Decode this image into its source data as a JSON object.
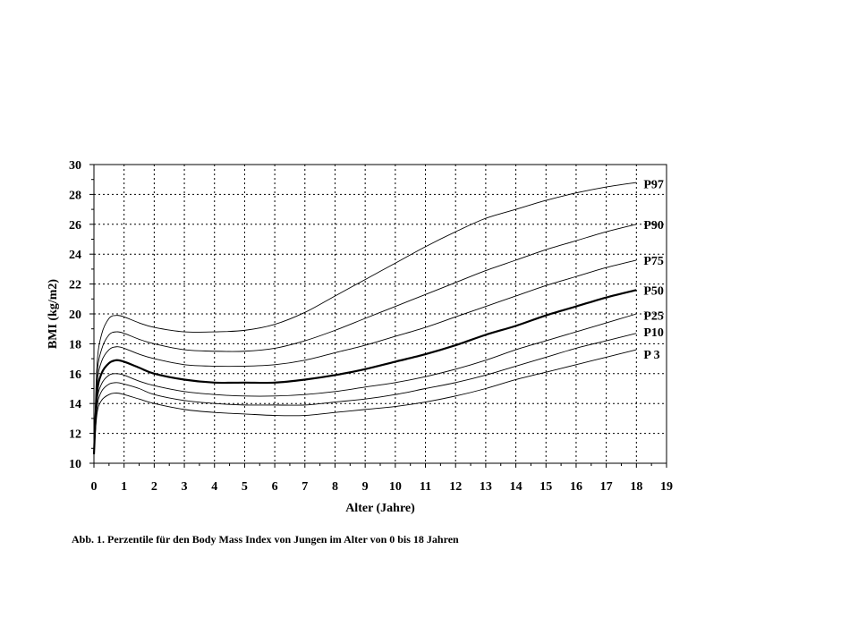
{
  "caption": "Abb. 1. Perzentile für den Body Mass Index von Jungen im Alter von 0 bis 18 Jahren",
  "chart_data": {
    "type": "line",
    "title": "",
    "xlabel": "Alter (Jahre)",
    "ylabel": "BMI (kg/m2)",
    "xlim": [
      0,
      19
    ],
    "ylim": [
      10,
      30
    ],
    "xticks": [
      0,
      1,
      2,
      3,
      4,
      5,
      6,
      7,
      8,
      9,
      10,
      11,
      12,
      13,
      14,
      15,
      16,
      17,
      18,
      19
    ],
    "yticks": [
      10,
      12,
      14,
      16,
      18,
      20,
      22,
      24,
      26,
      28,
      30
    ],
    "grid": true,
    "legend": "inline labels at right end of curves",
    "x": [
      0,
      0.1,
      0.25,
      0.5,
      0.75,
      1,
      1.5,
      2,
      3,
      4,
      5,
      6,
      7,
      8,
      9,
      10,
      11,
      12,
      13,
      14,
      15,
      16,
      17,
      18
    ],
    "series": [
      {
        "name": "P97",
        "values": [
          10.6,
          16.5,
          18.6,
          19.7,
          19.9,
          19.8,
          19.4,
          19.1,
          18.8,
          18.8,
          18.9,
          19.3,
          20.1,
          21.2,
          22.3,
          23.4,
          24.5,
          25.5,
          26.4,
          27.0,
          27.6,
          28.1,
          28.5,
          28.8
        ],
        "bold": false
      },
      {
        "name": "P90",
        "values": [
          10.6,
          15.8,
          17.6,
          18.6,
          18.8,
          18.7,
          18.3,
          18.0,
          17.6,
          17.5,
          17.5,
          17.7,
          18.2,
          18.9,
          19.7,
          20.5,
          21.3,
          22.1,
          22.9,
          23.6,
          24.3,
          24.9,
          25.5,
          26.0
        ],
        "bold": false
      },
      {
        "name": "P75",
        "values": [
          10.6,
          15.2,
          16.8,
          17.6,
          17.8,
          17.7,
          17.3,
          17.0,
          16.6,
          16.5,
          16.5,
          16.6,
          16.9,
          17.4,
          17.9,
          18.5,
          19.1,
          19.8,
          20.5,
          21.2,
          21.9,
          22.5,
          23.1,
          23.6
        ],
        "bold": false
      },
      {
        "name": "P50",
        "values": [
          10.6,
          14.6,
          16.0,
          16.7,
          16.9,
          16.8,
          16.4,
          16.0,
          15.6,
          15.4,
          15.4,
          15.4,
          15.6,
          15.9,
          16.3,
          16.8,
          17.3,
          17.9,
          18.6,
          19.2,
          19.9,
          20.5,
          21.1,
          21.6
        ],
        "bold": true
      },
      {
        "name": "P25",
        "values": [
          10.6,
          14.1,
          15.3,
          15.9,
          16.0,
          15.9,
          15.5,
          15.2,
          14.8,
          14.6,
          14.5,
          14.5,
          14.6,
          14.8,
          15.1,
          15.4,
          15.8,
          16.3,
          16.9,
          17.6,
          18.2,
          18.8,
          19.4,
          20.0
        ],
        "bold": false
      },
      {
        "name": "P10",
        "values": [
          10.6,
          13.7,
          14.8,
          15.3,
          15.4,
          15.3,
          15.0,
          14.6,
          14.2,
          14.0,
          13.9,
          13.9,
          13.9,
          14.1,
          14.3,
          14.6,
          15.0,
          15.4,
          15.9,
          16.5,
          17.1,
          17.7,
          18.2,
          18.7
        ],
        "bold": false
      },
      {
        "name": "P 3",
        "values": [
          10.6,
          13.3,
          14.2,
          14.6,
          14.7,
          14.6,
          14.3,
          14.0,
          13.6,
          13.4,
          13.3,
          13.2,
          13.2,
          13.4,
          13.6,
          13.8,
          14.1,
          14.5,
          15.0,
          15.6,
          16.1,
          16.6,
          17.1,
          17.6
        ],
        "bold": false
      }
    ],
    "label_y": [
      28.7,
      26.0,
      23.6,
      21.6,
      19.9,
      18.8,
      17.3
    ]
  }
}
